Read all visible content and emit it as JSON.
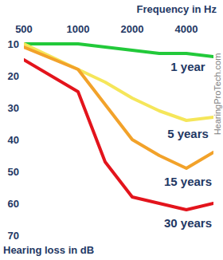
{
  "chart_data": {
    "type": "line",
    "x_label": "Frequency in Hz",
    "y_label": "Hearing loss in dB",
    "annotations": [
      "HearingProTech.com"
    ],
    "log": "x",
    "grid": false,
    "x": [
      500,
      1000,
      1414,
      2000,
      2828,
      4000,
      5657
    ],
    "xlim": [
      500,
      5657
    ],
    "xticks": [
      500,
      1000,
      2000,
      4000
    ],
    "ylim": [
      70,
      10
    ],
    "yticks": [
      10,
      20,
      30,
      40,
      50,
      60,
      70
    ],
    "series": [
      {
        "name": "1 year",
        "color": "#22c93a",
        "values": [
          10,
          10,
          11,
          12,
          13,
          13,
          14
        ]
      },
      {
        "name": "5 years",
        "color": "#f5e65a",
        "values": [
          10,
          18,
          22,
          27,
          31,
          34,
          33
        ]
      },
      {
        "name": "15 years",
        "color": "#f2a22a",
        "values": [
          11,
          18,
          29,
          40,
          45,
          49,
          44
        ]
      },
      {
        "name": "30 years",
        "color": "#e3141c",
        "values": [
          15,
          25,
          47,
          58,
          60,
          62,
          60
        ]
      }
    ]
  }
}
